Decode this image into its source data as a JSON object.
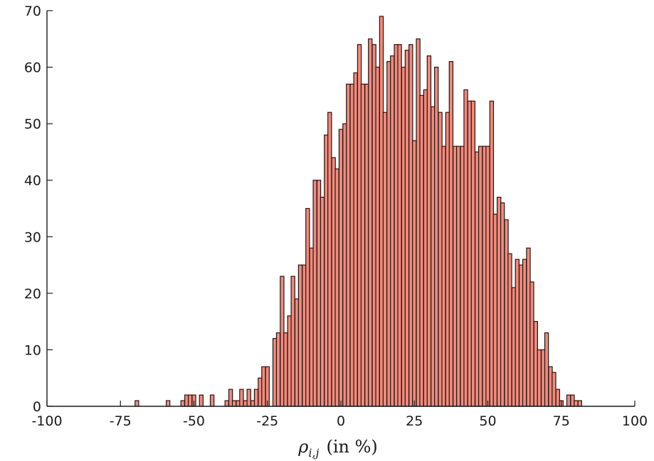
{
  "chart_data": {
    "type": "bar",
    "xlabel_parts": {
      "symbol": "ρ",
      "subscript": "i,j",
      "suffix": "(in %)"
    },
    "xlim": [
      -100,
      100
    ],
    "ylim": [
      0,
      70
    ],
    "xticks": [
      "-100",
      "-75",
      "-50",
      "-25",
      "0",
      "25",
      "50",
      "75",
      "100"
    ],
    "yticks": [
      "0",
      "10",
      "20",
      "30",
      "40",
      "50",
      "60",
      "70"
    ],
    "bin_width": 1.25,
    "bar_color": "#f4897a",
    "edge_color": "#1a1a1a",
    "grid": false,
    "bins": [
      {
        "x": -69.4,
        "v": 1
      },
      {
        "x": -58.8,
        "v": 1
      },
      {
        "x": -53.8,
        "v": 1
      },
      {
        "x": -52.5,
        "v": 2
      },
      {
        "x": -51.3,
        "v": 2
      },
      {
        "x": -50.0,
        "v": 2
      },
      {
        "x": -47.5,
        "v": 2
      },
      {
        "x": -43.8,
        "v": 2
      },
      {
        "x": -38.8,
        "v": 1
      },
      {
        "x": -37.5,
        "v": 3
      },
      {
        "x": -36.3,
        "v": 1
      },
      {
        "x": -35.0,
        "v": 1
      },
      {
        "x": -33.8,
        "v": 3
      },
      {
        "x": -32.5,
        "v": 1
      },
      {
        "x": -31.3,
        "v": 3
      },
      {
        "x": -30.0,
        "v": 1
      },
      {
        "x": -28.8,
        "v": 3
      },
      {
        "x": -27.5,
        "v": 5
      },
      {
        "x": -26.3,
        "v": 7
      },
      {
        "x": -25.0,
        "v": 7
      },
      {
        "x": -22.5,
        "v": 12
      },
      {
        "x": -21.3,
        "v": 13
      },
      {
        "x": -20.0,
        "v": 23
      },
      {
        "x": -18.8,
        "v": 13
      },
      {
        "x": -17.5,
        "v": 16
      },
      {
        "x": -16.3,
        "v": 23
      },
      {
        "x": -15.0,
        "v": 19
      },
      {
        "x": -13.8,
        "v": 25
      },
      {
        "x": -12.5,
        "v": 25
      },
      {
        "x": -11.3,
        "v": 35
      },
      {
        "x": -10.0,
        "v": 28
      },
      {
        "x": -8.8,
        "v": 40
      },
      {
        "x": -7.5,
        "v": 40
      },
      {
        "x": -6.3,
        "v": 37
      },
      {
        "x": -5.0,
        "v": 48
      },
      {
        "x": -3.8,
        "v": 52
      },
      {
        "x": -2.5,
        "v": 44
      },
      {
        "x": -1.3,
        "v": 42
      },
      {
        "x": 0.0,
        "v": 49
      },
      {
        "x": 1.3,
        "v": 50
      },
      {
        "x": 2.5,
        "v": 57
      },
      {
        "x": 3.8,
        "v": 57
      },
      {
        "x": 5.0,
        "v": 59
      },
      {
        "x": 6.3,
        "v": 64
      },
      {
        "x": 7.5,
        "v": 57
      },
      {
        "x": 8.8,
        "v": 57
      },
      {
        "x": 10.0,
        "v": 65
      },
      {
        "x": 11.3,
        "v": 64
      },
      {
        "x": 12.5,
        "v": 60
      },
      {
        "x": 13.8,
        "v": 69
      },
      {
        "x": 15.0,
        "v": 52
      },
      {
        "x": 16.3,
        "v": 61
      },
      {
        "x": 17.5,
        "v": 62
      },
      {
        "x": 18.8,
        "v": 64
      },
      {
        "x": 20.0,
        "v": 64
      },
      {
        "x": 21.3,
        "v": 60
      },
      {
        "x": 22.5,
        "v": 63
      },
      {
        "x": 23.8,
        "v": 64
      },
      {
        "x": 25.0,
        "v": 47
      },
      {
        "x": 26.3,
        "v": 65
      },
      {
        "x": 27.5,
        "v": 55
      },
      {
        "x": 28.8,
        "v": 56
      },
      {
        "x": 30.0,
        "v": 62
      },
      {
        "x": 31.3,
        "v": 53
      },
      {
        "x": 32.5,
        "v": 60
      },
      {
        "x": 33.8,
        "v": 52
      },
      {
        "x": 35.0,
        "v": 46
      },
      {
        "x": 36.3,
        "v": 52
      },
      {
        "x": 37.5,
        "v": 61
      },
      {
        "x": 38.8,
        "v": 46
      },
      {
        "x": 40.0,
        "v": 46
      },
      {
        "x": 41.3,
        "v": 46
      },
      {
        "x": 42.5,
        "v": 56
      },
      {
        "x": 43.8,
        "v": 54
      },
      {
        "x": 45.0,
        "v": 54
      },
      {
        "x": 46.3,
        "v": 45
      },
      {
        "x": 47.5,
        "v": 46
      },
      {
        "x": 48.8,
        "v": 46
      },
      {
        "x": 50.0,
        "v": 46
      },
      {
        "x": 51.3,
        "v": 54
      },
      {
        "x": 52.5,
        "v": 34
      },
      {
        "x": 53.8,
        "v": 37
      },
      {
        "x": 55.0,
        "v": 36
      },
      {
        "x": 56.3,
        "v": 33
      },
      {
        "x": 57.5,
        "v": 27
      },
      {
        "x": 58.8,
        "v": 21
      },
      {
        "x": 60.0,
        "v": 26
      },
      {
        "x": 61.3,
        "v": 25
      },
      {
        "x": 62.5,
        "v": 26
      },
      {
        "x": 63.8,
        "v": 28
      },
      {
        "x": 65.0,
        "v": 22
      },
      {
        "x": 66.3,
        "v": 15
      },
      {
        "x": 67.5,
        "v": 10
      },
      {
        "x": 68.8,
        "v": 10
      },
      {
        "x": 70.0,
        "v": 13
      },
      {
        "x": 71.3,
        "v": 7
      },
      {
        "x": 72.5,
        "v": 6
      },
      {
        "x": 73.8,
        "v": 3
      },
      {
        "x": 75.0,
        "v": 1
      },
      {
        "x": 77.5,
        "v": 2
      },
      {
        "x": 78.8,
        "v": 2
      },
      {
        "x": 80.0,
        "v": 1
      },
      {
        "x": 81.3,
        "v": 1
      }
    ]
  }
}
